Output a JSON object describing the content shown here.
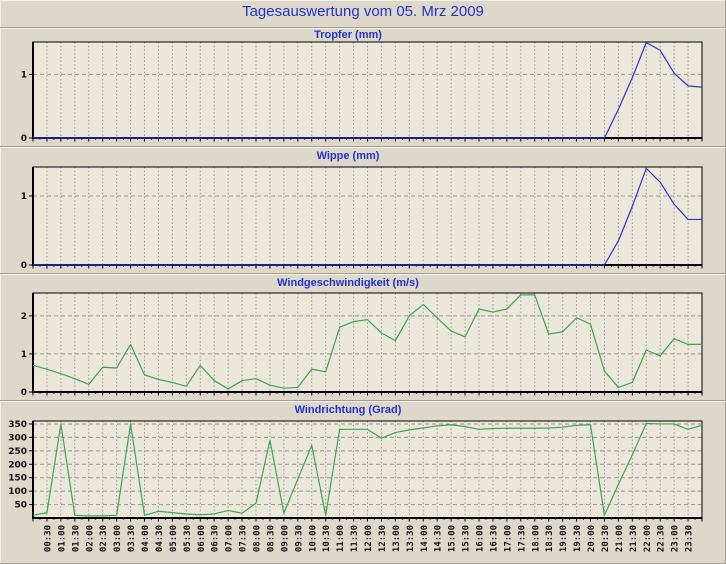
{
  "page_title": "Tagesauswertung vom 05. Mrz 2009",
  "colors": {
    "background": "#ddd8ca",
    "plot_background": "#ebe8db",
    "grid": "#999588",
    "axis": "#000000",
    "title_blue": "#2233cc",
    "rain_line": "#3333cc",
    "wind_line": "#3da35a",
    "label": "#111111"
  },
  "x_axis": {
    "tick_interval_minutes": 30,
    "labels": [
      "00:30",
      "01:00",
      "01:30",
      "02:00",
      "02:30",
      "03:00",
      "03:30",
      "04:00",
      "04:30",
      "05:00",
      "05:30",
      "06:00",
      "06:30",
      "07:00",
      "07:30",
      "08:00",
      "08:30",
      "09:00",
      "09:30",
      "10:00",
      "10:30",
      "11:00",
      "11:30",
      "12:00",
      "12:30",
      "13:00",
      "13:30",
      "14:00",
      "14:30",
      "15:00",
      "15:30",
      "16:00",
      "16:30",
      "17:00",
      "17:30",
      "18:00",
      "18:30",
      "19:00",
      "19:30",
      "20:00",
      "20:30",
      "21:00",
      "21:30",
      "22:00",
      "22:30",
      "23:00",
      "23:30"
    ]
  },
  "chart_data": [
    {
      "type": "line",
      "title": "Tropfer (mm)",
      "ylabel": "mm",
      "color_key": "rain_line",
      "ymax": 1.51,
      "yticks": [
        0,
        1
      ],
      "x_start": "00:00",
      "x_step_minutes": 30,
      "show_x_labels": false,
      "values": [
        0,
        0,
        0,
        0,
        0,
        0,
        0,
        0,
        0,
        0,
        0,
        0,
        0,
        0,
        0,
        0,
        0,
        0,
        0,
        0,
        0,
        0,
        0,
        0,
        0,
        0,
        0,
        0,
        0,
        0,
        0,
        0,
        0,
        0,
        0,
        0,
        0,
        0,
        0,
        0,
        0,
        0,
        0.45,
        0.95,
        1.5,
        1.38,
        1.02,
        0.82,
        0.8
      ]
    },
    {
      "type": "line",
      "title": "Wippe (mm)",
      "ylabel": "mm",
      "color_key": "rain_line",
      "ymax": 1.42,
      "yticks": [
        0,
        1
      ],
      "x_start": "00:00",
      "x_step_minutes": 30,
      "show_x_labels": false,
      "values": [
        0,
        0,
        0,
        0,
        0,
        0,
        0,
        0,
        0,
        0,
        0,
        0,
        0,
        0,
        0,
        0,
        0,
        0,
        0,
        0,
        0,
        0,
        0,
        0,
        0,
        0,
        0,
        0,
        0,
        0,
        0,
        0,
        0,
        0,
        0,
        0,
        0,
        0,
        0,
        0,
        0,
        0,
        0.35,
        0.85,
        1.4,
        1.2,
        0.88,
        0.66,
        0.66
      ]
    },
    {
      "type": "line",
      "title": "Windgeschwindigkeit (m/s)",
      "ylabel": "m/s",
      "color_key": "wind_line",
      "ymax": 2.6,
      "yticks": [
        0,
        1,
        2
      ],
      "x_start": "00:00",
      "x_step_minutes": 30,
      "show_x_labels": false,
      "values": [
        0.7,
        0.6,
        0.48,
        0.35,
        0.2,
        0.65,
        0.63,
        1.25,
        0.45,
        0.33,
        0.25,
        0.15,
        0.7,
        0.3,
        0.08,
        0.3,
        0.35,
        0.18,
        0.1,
        0.12,
        0.6,
        0.53,
        1.7,
        1.85,
        1.9,
        1.55,
        1.35,
        2.0,
        2.3,
        1.95,
        1.6,
        1.45,
        2.18,
        2.1,
        2.18,
        2.55,
        2.55,
        1.52,
        1.58,
        1.95,
        1.78,
        0.55,
        0.12,
        0.25,
        1.1,
        0.95,
        1.4,
        1.25,
        1.25
      ]
    },
    {
      "type": "line",
      "title": "Windrichtung (Grad)",
      "ylabel": "Grad",
      "color_key": "wind_line",
      "ymax": 361,
      "yticks": [
        50,
        100,
        150,
        200,
        250,
        300,
        350
      ],
      "x_start": "00:00",
      "x_step_minutes": 30,
      "show_x_labels": true,
      "values": [
        10,
        20,
        350,
        10,
        8,
        8,
        10,
        350,
        10,
        25,
        20,
        15,
        12,
        15,
        28,
        18,
        55,
        290,
        18,
        145,
        270,
        10,
        330,
        330,
        330,
        297,
        318,
        328,
        335,
        343,
        347,
        340,
        330,
        333,
        334,
        334,
        334,
        335,
        338,
        345,
        347,
        10,
        125,
        235,
        352,
        350,
        350,
        330,
        345
      ]
    }
  ]
}
